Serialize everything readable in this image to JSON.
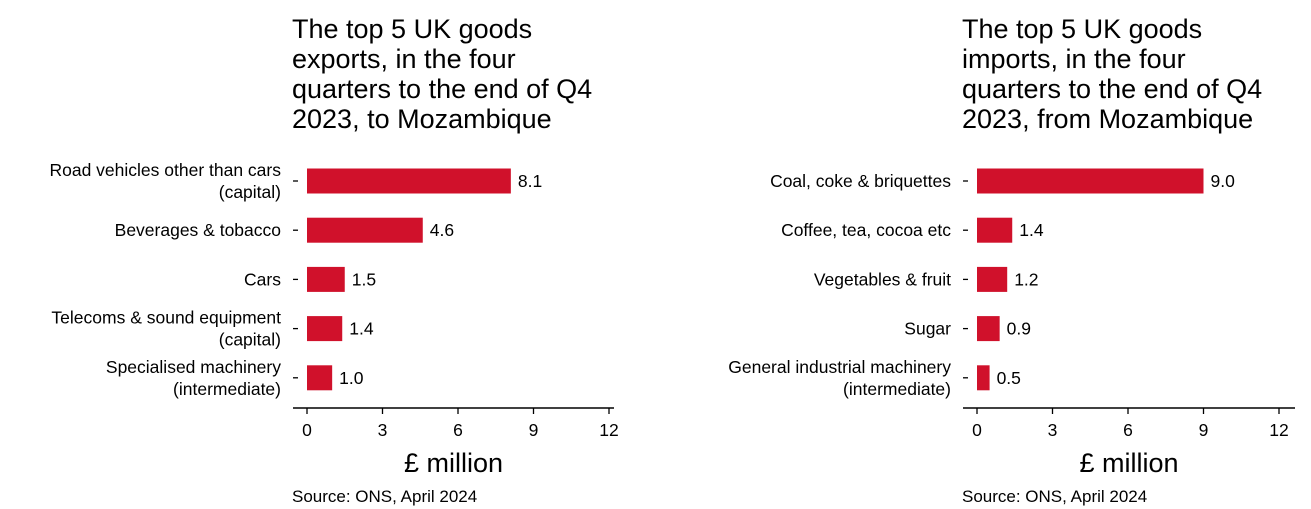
{
  "chart_data": [
    {
      "type": "bar",
      "orientation": "horizontal",
      "title": "The top 5 UK goods\nexports, in the four\nquarters to the end of Q4\n2023, to Mozambique",
      "categories": [
        "Road vehicles other than cars\n(capital)",
        "Beverages & tobacco",
        "Cars",
        "Telecoms & sound equipment\n(capital)",
        "Specialised machinery\n(intermediate)"
      ],
      "values": [
        8.1,
        4.6,
        1.5,
        1.4,
        1.0
      ],
      "value_labels": [
        "8.1",
        "4.6",
        "1.5",
        "1.4",
        "1.0"
      ],
      "xlabel": "£ million",
      "xlim": [
        0,
        12
      ],
      "xticks": [
        0,
        3,
        6,
        9,
        12
      ],
      "grid": false,
      "bar_color": "#d0112b",
      "source": "Source: ONS, April 2024"
    },
    {
      "type": "bar",
      "orientation": "horizontal",
      "title": "The top 5 UK goods\nimports, in the four\nquarters to the end of Q4\n2023, from Mozambique",
      "categories": [
        "Coal, coke & briquettes",
        "Coffee, tea, cocoa etc",
        "Vegetables & fruit",
        "Sugar",
        "General industrial machinery\n(intermediate)"
      ],
      "values": [
        9.0,
        1.4,
        1.2,
        0.9,
        0.5
      ],
      "value_labels": [
        "9.0",
        "1.4",
        "1.2",
        "0.9",
        "0.5"
      ],
      "xlabel": "£ million",
      "xlim": [
        0,
        12
      ],
      "xticks": [
        0,
        3,
        6,
        9,
        12
      ],
      "grid": false,
      "bar_color": "#d0112b",
      "source": "Source: ONS, April 2024"
    }
  ]
}
